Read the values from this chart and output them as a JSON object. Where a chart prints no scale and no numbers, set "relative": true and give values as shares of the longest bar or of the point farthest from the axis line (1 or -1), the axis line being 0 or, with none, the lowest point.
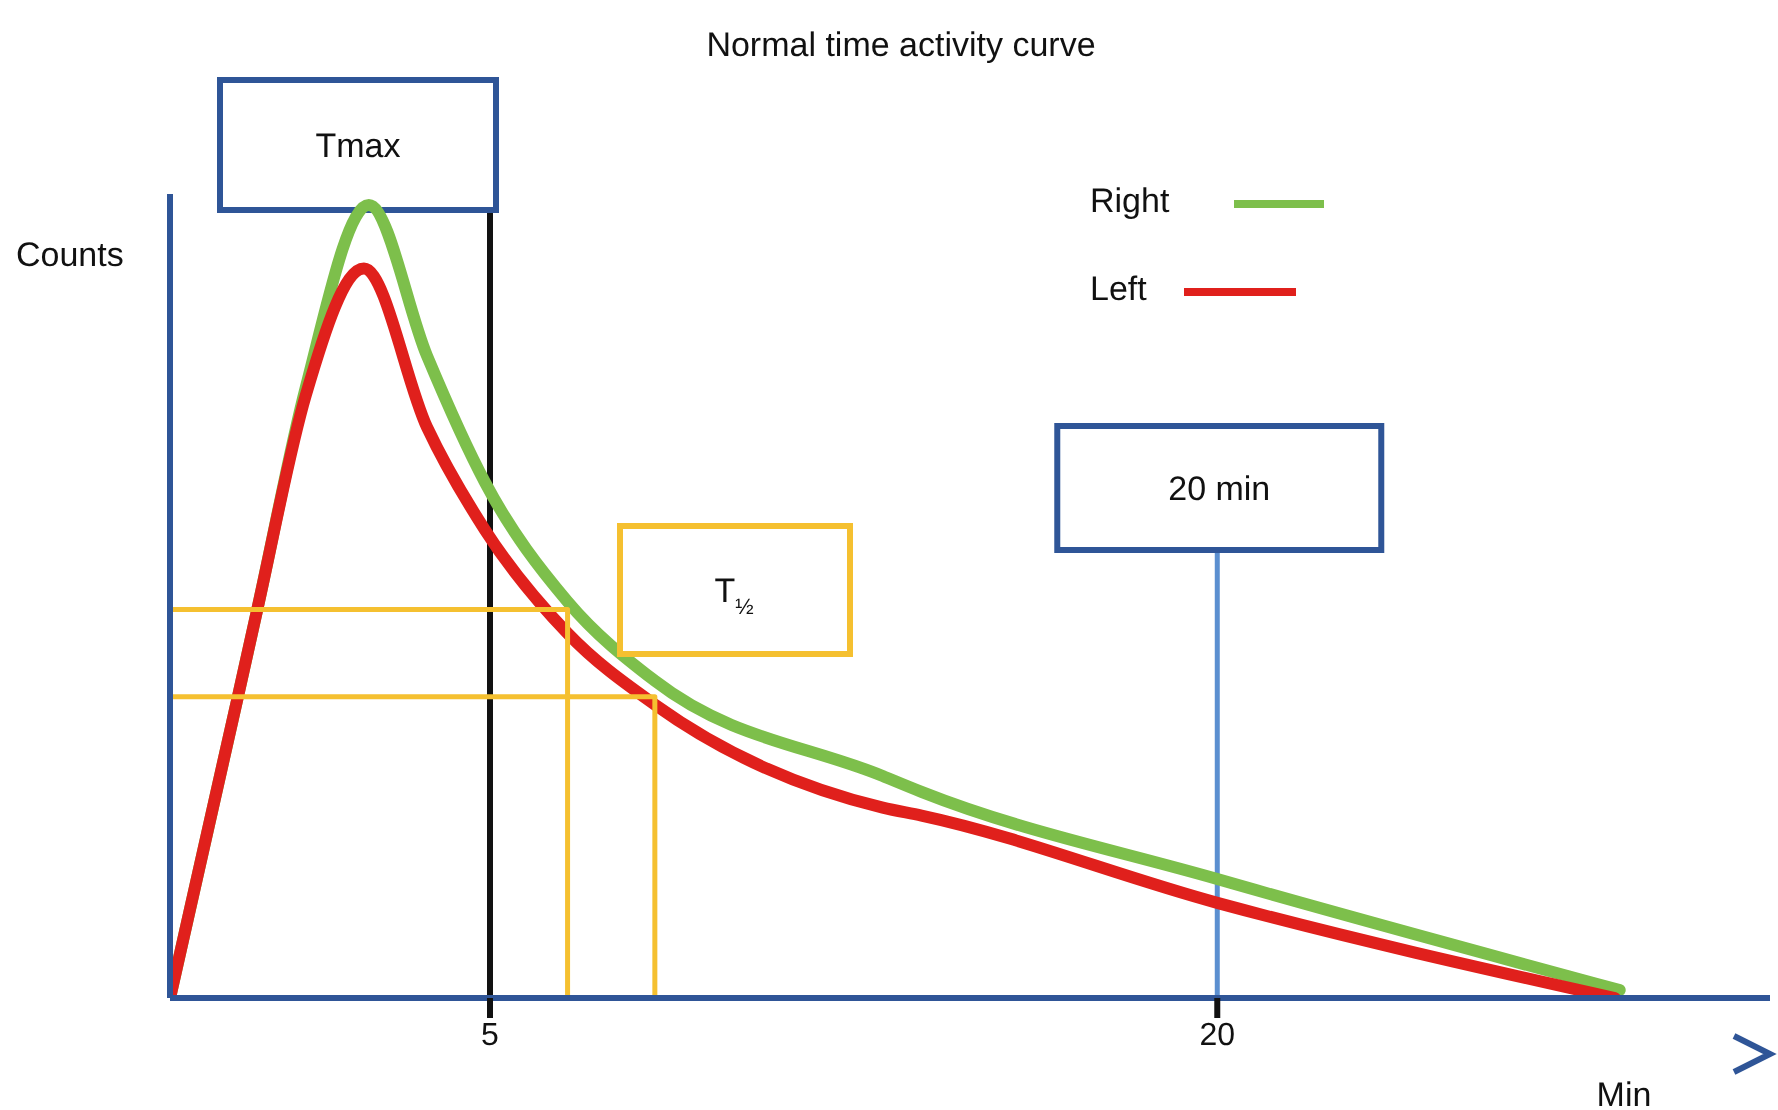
{
  "chart_data": {
    "type": "line",
    "title": "Normal time activity curve",
    "xlabel": "Min",
    "ylabel": "Counts",
    "relative": true,
    "xlim": [
      -1.6,
      31.4
    ],
    "xticks": [
      5,
      20
    ],
    "legend": "top right",
    "grid": false,
    "series": [
      {
        "name": "Right",
        "color": "#7dbf4b",
        "x": [
          -1.6,
          -0.2,
          0.2,
          1.2,
          2.5,
          3.7,
          4.9,
          6.6,
          8.4,
          13.1,
          13.9,
          20,
          28.3
        ],
        "values": [
          0,
          0.38,
          0.49,
          0.77,
          1,
          0.81,
          0.65,
          0.5,
          0.4,
          0.28,
          0.26,
          0.15,
          0.01
        ]
      },
      {
        "name": "Left",
        "color": "#e0201c",
        "x": [
          -1.6,
          -0.2,
          0.2,
          1.2,
          2.4,
          3.7,
          4.9,
          6.6,
          8.4,
          13.1,
          13.9,
          20,
          28.2
        ],
        "values": [
          0,
          0.38,
          0.49,
          0.76,
          0.92,
          0.72,
          0.59,
          0.46,
          0.37,
          0.24,
          0.23,
          0.12,
          0
        ]
      },
      {
        "color": "#f5c030",
        "x": [
          -1.6,
          6.6,
          6.6
        ],
        "values": [
          0.49,
          0.49,
          0
        ]
      },
      {
        "color": "#f5c030",
        "x": [
          -1.6,
          8.4,
          8.4
        ],
        "values": [
          0.38,
          0.38,
          0
        ]
      }
    ],
    "ref_lines": [
      {
        "axis": "x",
        "value": 5,
        "label": "Tmax",
        "color": "#111111"
      },
      {
        "axis": "x",
        "value": 20,
        "label": "20 min",
        "color": "#5b8fd0"
      }
    ],
    "annotations": [
      "T$_{½}$"
    ]
  }
}
